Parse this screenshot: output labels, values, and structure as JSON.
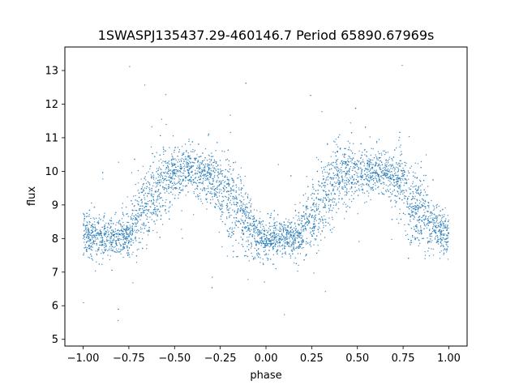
{
  "chart_data": {
    "type": "scatter",
    "title": "1SWASPJ135437.29-460146.7 Period 65890.67969s",
    "xlabel": "phase",
    "ylabel": "flux",
    "xlim": [
      -1.1,
      1.1
    ],
    "ylim": [
      4.8,
      13.7
    ],
    "x_ticks": [
      -1.0,
      -0.75,
      -0.5,
      -0.25,
      0.0,
      0.25,
      0.5,
      0.75,
      1.0
    ],
    "x_tick_labels": [
      "−1.00",
      "−0.75",
      "−0.50",
      "−0.25",
      "0.00",
      "0.25",
      "0.50",
      "0.75",
      "1.00"
    ],
    "y_ticks": [
      5,
      6,
      7,
      8,
      9,
      10,
      11,
      12,
      13
    ],
    "y_tick_labels": [
      "5",
      "6",
      "7",
      "8",
      "9",
      "10",
      "11",
      "12",
      "13"
    ],
    "grid": false,
    "marker_color": "#1f77b4",
    "series": [
      {
        "phase": [
          -1.0,
          -0.95,
          -0.9,
          -0.85,
          -0.8,
          -0.75,
          -0.7,
          -0.65,
          -0.6,
          -0.55,
          -0.5,
          -0.45,
          -0.4,
          -0.35,
          -0.3,
          -0.25,
          -0.2,
          -0.15,
          -0.1,
          -0.05,
          0.0,
          0.05,
          0.1,
          0.15,
          0.2,
          0.25,
          0.3,
          0.35,
          0.4,
          0.45,
          0.5,
          0.55,
          0.6,
          0.65,
          0.7,
          0.75,
          0.8,
          0.85,
          0.9,
          0.95,
          1.0
        ],
        "flux_median": [
          8.2,
          8.05,
          8.0,
          8.0,
          8.05,
          8.2,
          8.6,
          9.1,
          9.5,
          9.8,
          9.95,
          10.0,
          10.0,
          9.95,
          9.85,
          9.6,
          9.2,
          8.8,
          8.4,
          8.1,
          8.0,
          8.0,
          8.0,
          8.05,
          8.2,
          8.6,
          9.1,
          9.5,
          9.8,
          9.95,
          10.0,
          10.0,
          10.0,
          9.95,
          9.8,
          9.5,
          9.1,
          8.7,
          8.4,
          8.2,
          8.1
        ],
        "flux_spread": [
          0.35,
          0.3,
          0.3,
          0.3,
          0.3,
          0.35,
          0.5,
          0.6,
          0.6,
          0.5,
          0.4,
          0.35,
          0.35,
          0.35,
          0.4,
          0.5,
          0.6,
          0.6,
          0.5,
          0.35,
          0.3,
          0.3,
          0.3,
          0.3,
          0.35,
          0.5,
          0.6,
          0.6,
          0.5,
          0.4,
          0.35,
          0.35,
          0.35,
          0.35,
          0.45,
          0.6,
          0.6,
          0.55,
          0.45,
          0.35,
          0.35
        ]
      }
    ]
  }
}
